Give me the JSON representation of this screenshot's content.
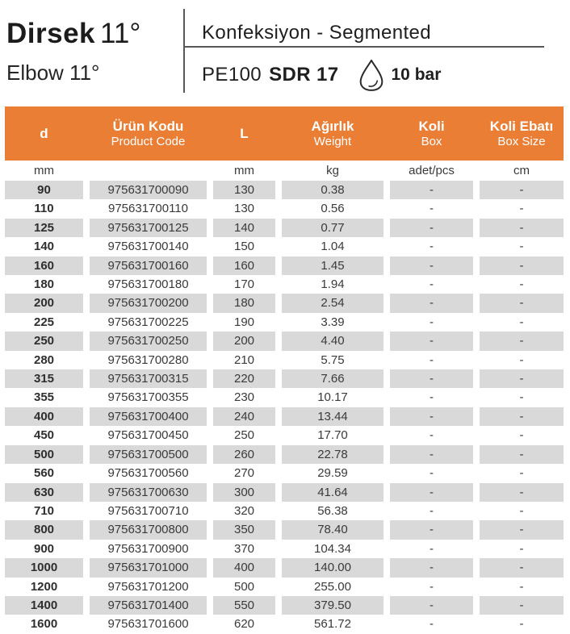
{
  "header": {
    "title": "Dirsek",
    "title_degree": "11°",
    "subtitle": "Elbow 11°",
    "category": "Konfeksiyon - Segmented",
    "material": "PE100",
    "sdr": "SDR 17",
    "pressure": "10 bar",
    "pressure_icon": "water-drop-icon"
  },
  "table": {
    "columns": [
      {
        "key": "d",
        "label_tr": "d",
        "label_en": "",
        "unit": "mm"
      },
      {
        "key": "product_code",
        "label_tr": "Ürün Kodu",
        "label_en": "Product Code",
        "unit": ""
      },
      {
        "key": "l",
        "label_tr": "L",
        "label_en": "",
        "unit": "mm"
      },
      {
        "key": "weight",
        "label_tr": "Ağırlık",
        "label_en": "Weight",
        "unit": "kg"
      },
      {
        "key": "box",
        "label_tr": "Koli",
        "label_en": "Box",
        "unit": "adet/pcs"
      },
      {
        "key": "box_size",
        "label_tr": "Koli Ebatı",
        "label_en": "Box Size",
        "unit": "cm"
      }
    ],
    "rows": [
      [
        "90",
        "975631700090",
        "130",
        "0.38",
        "-",
        "-"
      ],
      [
        "110",
        "975631700110",
        "130",
        "0.56",
        "-",
        "-"
      ],
      [
        "125",
        "975631700125",
        "140",
        "0.77",
        "-",
        "-"
      ],
      [
        "140",
        "975631700140",
        "150",
        "1.04",
        "-",
        "-"
      ],
      [
        "160",
        "975631700160",
        "160",
        "1.45",
        "-",
        "-"
      ],
      [
        "180",
        "975631700180",
        "170",
        "1.94",
        "-",
        "-"
      ],
      [
        "200",
        "975631700200",
        "180",
        "2.54",
        "-",
        "-"
      ],
      [
        "225",
        "975631700225",
        "190",
        "3.39",
        "-",
        "-"
      ],
      [
        "250",
        "975631700250",
        "200",
        "4.40",
        "-",
        "-"
      ],
      [
        "280",
        "975631700280",
        "210",
        "5.75",
        "-",
        "-"
      ],
      [
        "315",
        "975631700315",
        "220",
        "7.66",
        "-",
        "-"
      ],
      [
        "355",
        "975631700355",
        "230",
        "10.17",
        "-",
        "-"
      ],
      [
        "400",
        "975631700400",
        "240",
        "13.44",
        "-",
        "-"
      ],
      [
        "450",
        "975631700450",
        "250",
        "17.70",
        "-",
        "-"
      ],
      [
        "500",
        "975631700500",
        "260",
        "22.78",
        "-",
        "-"
      ],
      [
        "560",
        "975631700560",
        "270",
        "29.59",
        "-",
        "-"
      ],
      [
        "630",
        "975631700630",
        "300",
        "41.64",
        "-",
        "-"
      ],
      [
        "710",
        "975631700710",
        "320",
        "56.38",
        "-",
        "-"
      ],
      [
        "800",
        "975631700800",
        "350",
        "78.40",
        "-",
        "-"
      ],
      [
        "900",
        "975631700900",
        "370",
        "104.34",
        "-",
        "-"
      ],
      [
        "1000",
        "975631701000",
        "400",
        "140.00",
        "-",
        "-"
      ],
      [
        "1200",
        "975631701200",
        "500",
        "255.00",
        "-",
        "-"
      ],
      [
        "1400",
        "975631701400",
        "550",
        "379.50",
        "-",
        "-"
      ],
      [
        "1600",
        "975631701600",
        "620",
        "561.72",
        "-",
        "-"
      ]
    ]
  },
  "colors": {
    "accent_orange": "#EA7E35",
    "row_alt_gray": "#D9D9D9",
    "divider_gray": "#57585A",
    "header_text": "#FFFFFF",
    "body_text": "#3A3A3A"
  }
}
